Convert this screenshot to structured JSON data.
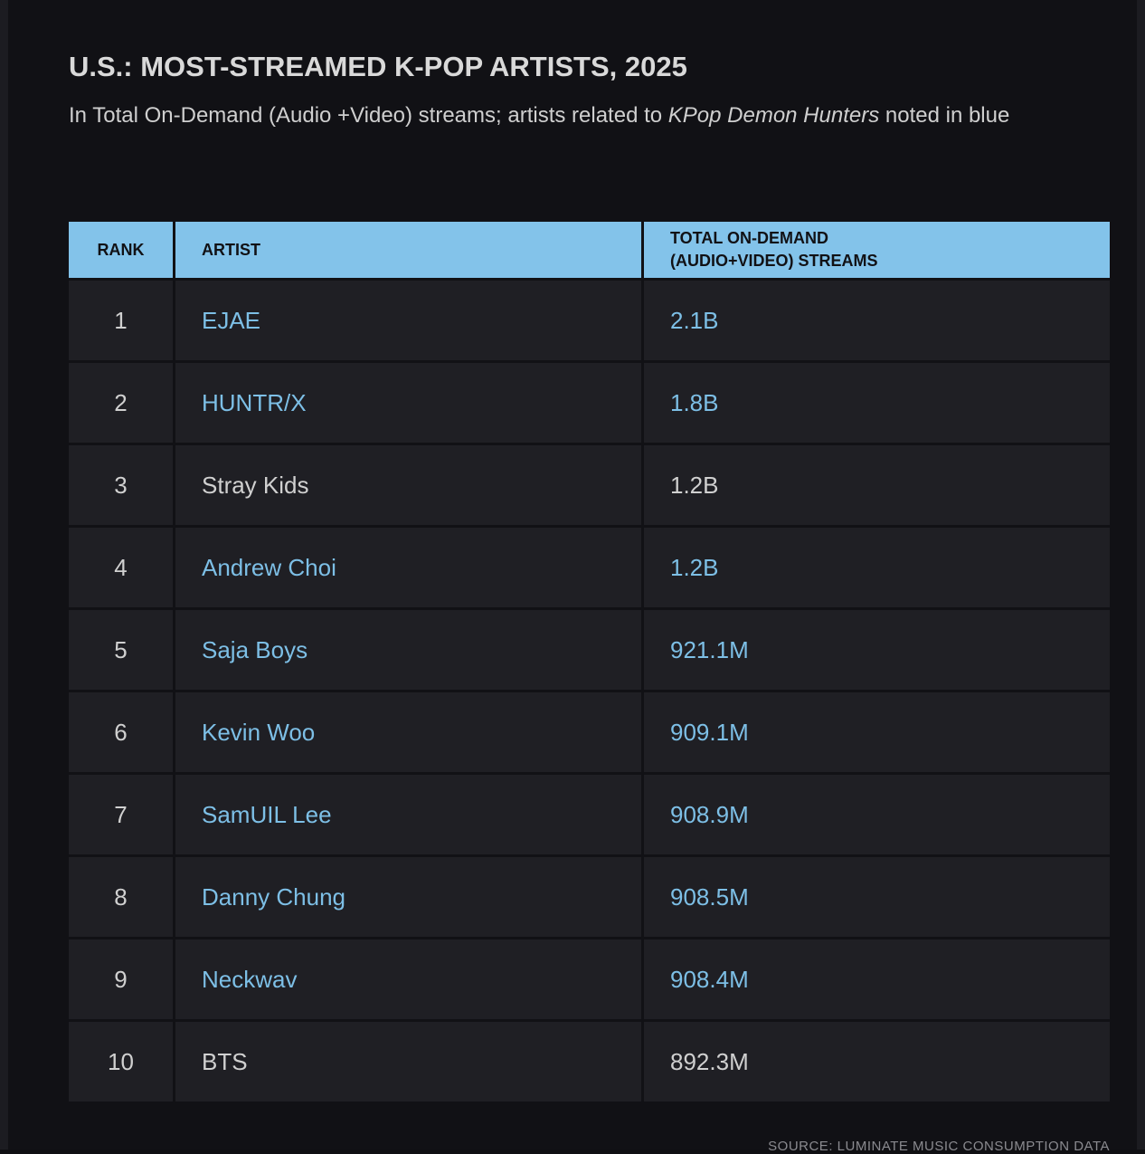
{
  "chart_data": {
    "type": "table",
    "title": "U.S.: MOST-STREAMED K-POP ARTISTS, 2025",
    "subtitle_prefix": "In Total On-Demand (Audio +Video) streams; artists related to ",
    "subtitle_italic": "KPop Demon Hunters",
    "subtitle_suffix": " noted in blue",
    "columns": [
      "RANK",
      "ARTIST",
      "TOTAL ON-DEMAND (AUDIO+VIDEO) STREAMS"
    ],
    "rows": [
      {
        "rank": "1",
        "artist": "EJAE",
        "streams": "2.1B",
        "highlight": true
      },
      {
        "rank": "2",
        "artist": "HUNTR/X",
        "streams": "1.8B",
        "highlight": true
      },
      {
        "rank": "3",
        "artist": "Stray Kids",
        "streams": "1.2B",
        "highlight": false
      },
      {
        "rank": "4",
        "artist": "Andrew Choi",
        "streams": "1.2B",
        "highlight": true
      },
      {
        "rank": "5",
        "artist": "Saja Boys",
        "streams": "921.1M",
        "highlight": true
      },
      {
        "rank": "6",
        "artist": "Kevin Woo",
        "streams": "909.1M",
        "highlight": true
      },
      {
        "rank": "7",
        "artist": "SamUIL Lee",
        "streams": "908.9M",
        "highlight": true
      },
      {
        "rank": "8",
        "artist": "Danny Chung",
        "streams": "908.5M",
        "highlight": true
      },
      {
        "rank": "9",
        "artist": "Neckwav",
        "streams": "908.4M",
        "highlight": true
      },
      {
        "rank": "10",
        "artist": "BTS",
        "streams": "892.3M",
        "highlight": false
      }
    ],
    "highlight_color": "#7dbfe6",
    "header_color": "#83c3ea",
    "source": "SOURCE: LUMINATE MUSIC CONSUMPTION DATA"
  }
}
